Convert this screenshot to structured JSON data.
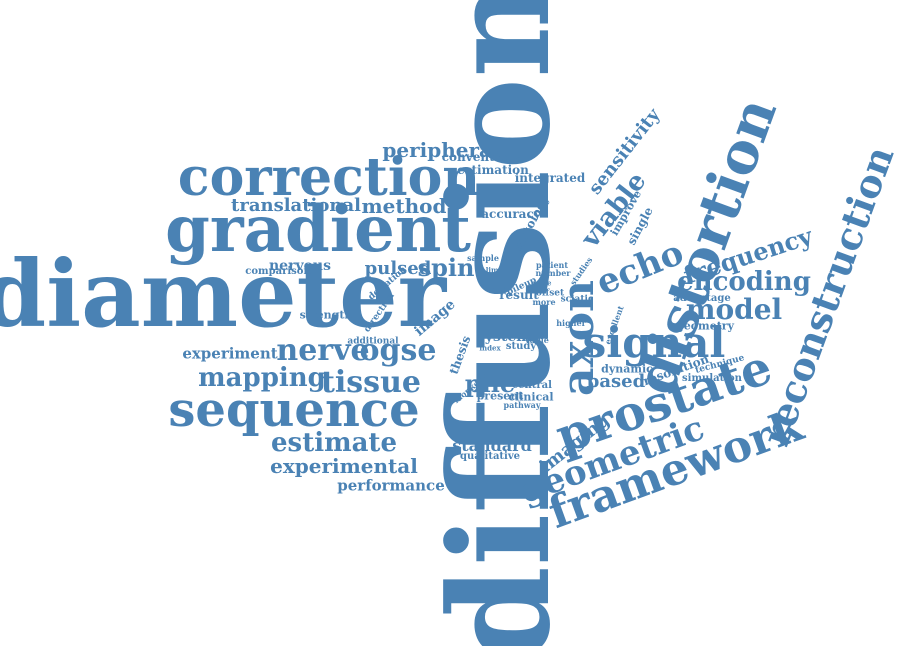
{
  "color": "#4a82b4",
  "words": [
    {
      "key": "diffusion",
      "text": "diffusion"
    },
    {
      "key": "diameter",
      "text": "diameter"
    },
    {
      "key": "gradient",
      "text": "gradient"
    },
    {
      "key": "correction",
      "text": "correction"
    },
    {
      "key": "sequence",
      "text": "sequence"
    },
    {
      "key": "prostate",
      "text": "prostate"
    },
    {
      "key": "distortion",
      "text": "distortion"
    },
    {
      "key": "reconstruction",
      "text": "reconstruction"
    },
    {
      "key": "framework",
      "text": "framework"
    },
    {
      "key": "geometric",
      "text": "geometric"
    },
    {
      "key": "signal",
      "text": "signal"
    },
    {
      "key": "axon",
      "text": "axon"
    },
    {
      "key": "echo",
      "text": "echo"
    },
    {
      "key": "nerve",
      "text": "nerve"
    },
    {
      "key": "ogse",
      "text": "ogse"
    },
    {
      "key": "tissue",
      "text": "tissue"
    },
    {
      "key": "mapping",
      "text": "mapping"
    },
    {
      "key": "estimate",
      "text": "estimate"
    },
    {
      "key": "experimental",
      "text": "experimental"
    },
    {
      "key": "performance",
      "text": "performance"
    },
    {
      "key": "spin",
      "text": "spin"
    },
    {
      "key": "pulsed",
      "text": "pulsed"
    },
    {
      "key": "method",
      "text": "method"
    },
    {
      "key": "translational",
      "text": "translational"
    },
    {
      "key": "peripheral",
      "text": "peripheral"
    },
    {
      "key": "conventional",
      "text": "conventional"
    },
    {
      "key": "estimation",
      "text": "estimation"
    },
    {
      "key": "integrated",
      "text": "integrated"
    },
    {
      "key": "model",
      "text": "model"
    },
    {
      "key": "encoding",
      "text": "encoding"
    },
    {
      "key": "frequency",
      "text": "frequency"
    },
    {
      "key": "viable",
      "text": "viable"
    },
    {
      "key": "sensitivity",
      "text": "sensitivity"
    },
    {
      "key": "imaging",
      "text": "imaging"
    },
    {
      "key": "based",
      "text": "based"
    },
    {
      "key": "pile",
      "text": "pile"
    },
    {
      "key": "standard",
      "text": "standard"
    },
    {
      "key": "qualitative",
      "text": "qualitative"
    },
    {
      "key": "experiment",
      "text": "experiment"
    },
    {
      "key": "nervous",
      "text": "nervous"
    },
    {
      "key": "comparison",
      "text": "comparison"
    },
    {
      "key": "strength",
      "text": "strength"
    },
    {
      "key": "additional",
      "text": "additional"
    },
    {
      "key": "image",
      "text": "image"
    },
    {
      "key": "system",
      "text": "system"
    },
    {
      "key": "study",
      "text": "study"
    },
    {
      "key": "central",
      "text": "central"
    },
    {
      "key": "clinical",
      "text": "clinical"
    },
    {
      "key": "present",
      "text": "present"
    },
    {
      "key": "pathway",
      "text": "pathway"
    },
    {
      "key": "dynamic",
      "text": "dynamic"
    },
    {
      "key": "resolution",
      "text": "resolution"
    },
    {
      "key": "technique",
      "text": "technique"
    },
    {
      "key": "simulation",
      "text": "simulation"
    },
    {
      "key": "geometry",
      "text": "geometry"
    },
    {
      "key": "advantage",
      "text": "advantage"
    },
    {
      "key": "accuracy",
      "text": "accuracy"
    },
    {
      "key": "histology",
      "text": "histology"
    },
    {
      "key": "improve",
      "text": "improve"
    },
    {
      "key": "single",
      "text": "single"
    },
    {
      "key": "sample",
      "text": "sample"
    },
    {
      "key": "patient",
      "text": "patient"
    },
    {
      "key": "number",
      "text": "number"
    },
    {
      "key": "field",
      "text": "field"
    },
    {
      "key": "result",
      "text": "result"
    },
    {
      "key": "offset",
      "text": "offset"
    },
    {
      "key": "more",
      "text": "more"
    },
    {
      "key": "sciatic",
      "text": "sciatic"
    },
    {
      "key": "pileup",
      "text": "pileup"
    },
    {
      "key": "deviation",
      "text": "deviation"
    },
    {
      "key": "direction",
      "text": "direction"
    },
    {
      "key": "thesis",
      "text": "thesis"
    },
    {
      "key": "monkey",
      "text": "monkey"
    },
    {
      "key": "studies",
      "text": "studies"
    },
    {
      "key": "excellent",
      "text": "excellent"
    },
    {
      "key": "higher",
      "text": "higher"
    },
    {
      "key": "value",
      "text": "value"
    },
    {
      "key": "index",
      "text": "index"
    },
    {
      "key": "limit",
      "text": "limit"
    },
    {
      "key": "noise",
      "text": "noise"
    }
  ]
}
